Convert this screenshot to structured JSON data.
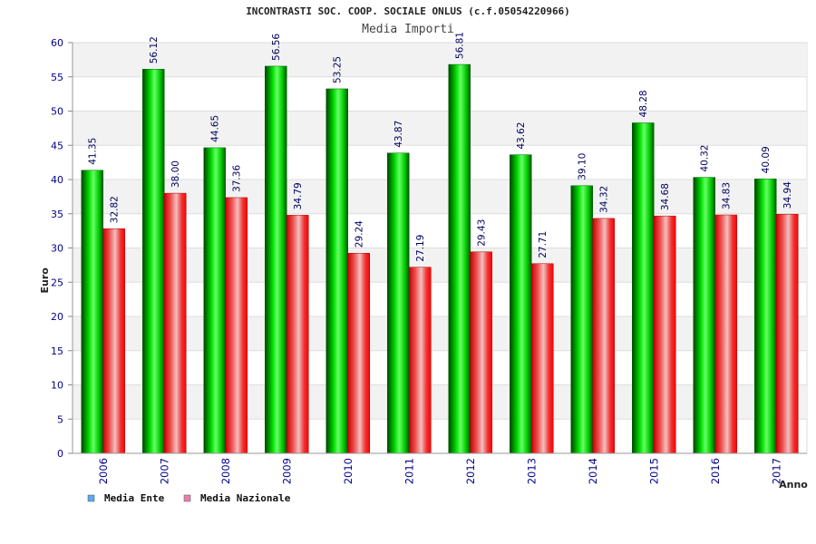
{
  "chart_data": {
    "type": "bar",
    "title": "INCONTRASTI SOC. COOP. SOCIALE ONLUS (c.f.05054220966)",
    "subtitle": "Media Importi",
    "ylabel": "Euro",
    "xlabel": "Anno",
    "ylim": [
      0,
      60
    ],
    "yticks": [
      0,
      5,
      10,
      15,
      20,
      25,
      30,
      35,
      40,
      45,
      50,
      55,
      60
    ],
    "categories": [
      "2006",
      "2007",
      "2008",
      "2009",
      "2010",
      "2011",
      "2012",
      "2013",
      "2014",
      "2015",
      "2016",
      "2017"
    ],
    "series": [
      {
        "name": "Media Ente",
        "color": "#00cc00",
        "legend_color": "#5ba8f0",
        "values": [
          41.35,
          56.12,
          44.65,
          56.56,
          53.25,
          43.87,
          56.81,
          43.62,
          39.1,
          48.28,
          40.32,
          40.09
        ],
        "labels": [
          "41.35",
          "56.12",
          "44.65",
          "56.56",
          "53.25",
          "43.87",
          "56.81",
          "43.62",
          "39.10",
          "48.28",
          "40.32",
          "40.09"
        ]
      },
      {
        "name": "Media Nazionale",
        "color": "#ee1111",
        "legend_color": "#e87fb0",
        "values": [
          32.82,
          38.0,
          37.36,
          34.79,
          29.24,
          27.19,
          29.43,
          27.71,
          34.32,
          34.68,
          34.83,
          34.94
        ],
        "labels": [
          "32.82",
          "38.00",
          "37.36",
          "34.79",
          "29.24",
          "27.19",
          "29.43",
          "27.71",
          "34.32",
          "34.68",
          "34.83",
          "34.94"
        ]
      }
    ],
    "grid": true,
    "legend_position": "bottom-left"
  }
}
